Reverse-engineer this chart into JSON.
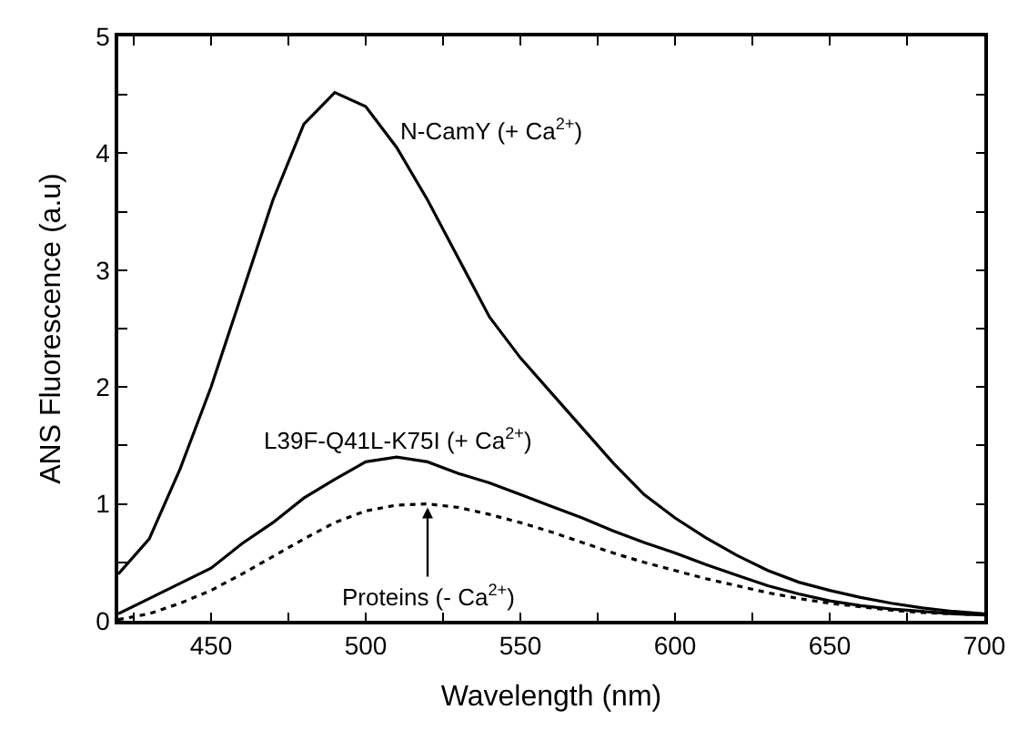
{
  "chart_data": {
    "type": "line",
    "xlabel": "Wavelength (nm)",
    "ylabel": "ANS Fluorescence (a.u)",
    "x": [
      420,
      430,
      440,
      450,
      460,
      470,
      480,
      490,
      500,
      510,
      520,
      530,
      540,
      550,
      560,
      570,
      580,
      590,
      600,
      610,
      620,
      630,
      640,
      650,
      660,
      670,
      680,
      690,
      700
    ],
    "series": [
      {
        "name": "N-CamY (+ Ca$^{2+}$)",
        "color": "#000000",
        "line_style": "solid",
        "values": [
          0.4,
          0.7,
          1.3,
          2.0,
          2.8,
          3.6,
          4.25,
          4.52,
          4.4,
          4.05,
          3.6,
          3.1,
          2.6,
          2.25,
          1.95,
          1.65,
          1.35,
          1.08,
          0.88,
          0.71,
          0.56,
          0.43,
          0.33,
          0.26,
          0.2,
          0.15,
          0.11,
          0.08,
          0.06
        ]
      },
      {
        "name": "L39F-Q41L-K75I (+ Ca$^{2+}$)",
        "color": "#000000",
        "line_style": "solid",
        "values": [
          0.06,
          0.19,
          0.32,
          0.45,
          0.66,
          0.84,
          1.05,
          1.21,
          1.36,
          1.4,
          1.36,
          1.26,
          1.18,
          1.08,
          0.98,
          0.88,
          0.77,
          0.67,
          0.58,
          0.48,
          0.39,
          0.3,
          0.23,
          0.17,
          0.13,
          0.1,
          0.08,
          0.06,
          0.05
        ]
      },
      {
        "name": "Proteins (- Ca$^{2+}$)",
        "color": "#000000",
        "line_style": "dotted",
        "values": [
          0.01,
          0.06,
          0.15,
          0.26,
          0.4,
          0.55,
          0.7,
          0.84,
          0.94,
          0.99,
          1.0,
          0.97,
          0.91,
          0.84,
          0.76,
          0.67,
          0.58,
          0.5,
          0.43,
          0.36,
          0.3,
          0.24,
          0.19,
          0.15,
          0.12,
          0.09,
          0.07,
          0.06,
          0.05
        ]
      }
    ],
    "xlim": [
      420,
      700
    ],
    "xticks": [
      {
        "value": 425,
        "label": null
      },
      450,
      {
        "value": 475,
        "label": null
      },
      500,
      {
        "value": 525,
        "label": null
      },
      550,
      {
        "value": 575,
        "label": null
      },
      600,
      {
        "value": 625,
        "label": null
      },
      650,
      {
        "value": 675,
        "label": null
      },
      700
    ],
    "ylim": [
      0,
      5
    ],
    "yticks": [
      0,
      {
        "value": 0.5,
        "label": null
      },
      1,
      {
        "value": 1.5,
        "label": null
      },
      2,
      {
        "value": 2.5,
        "label": null
      },
      3,
      {
        "value": 3.5,
        "label": null
      },
      4,
      {
        "value": 4.5,
        "label": null
      },
      5
    ],
    "legend": false,
    "marker": "none"
  }
}
